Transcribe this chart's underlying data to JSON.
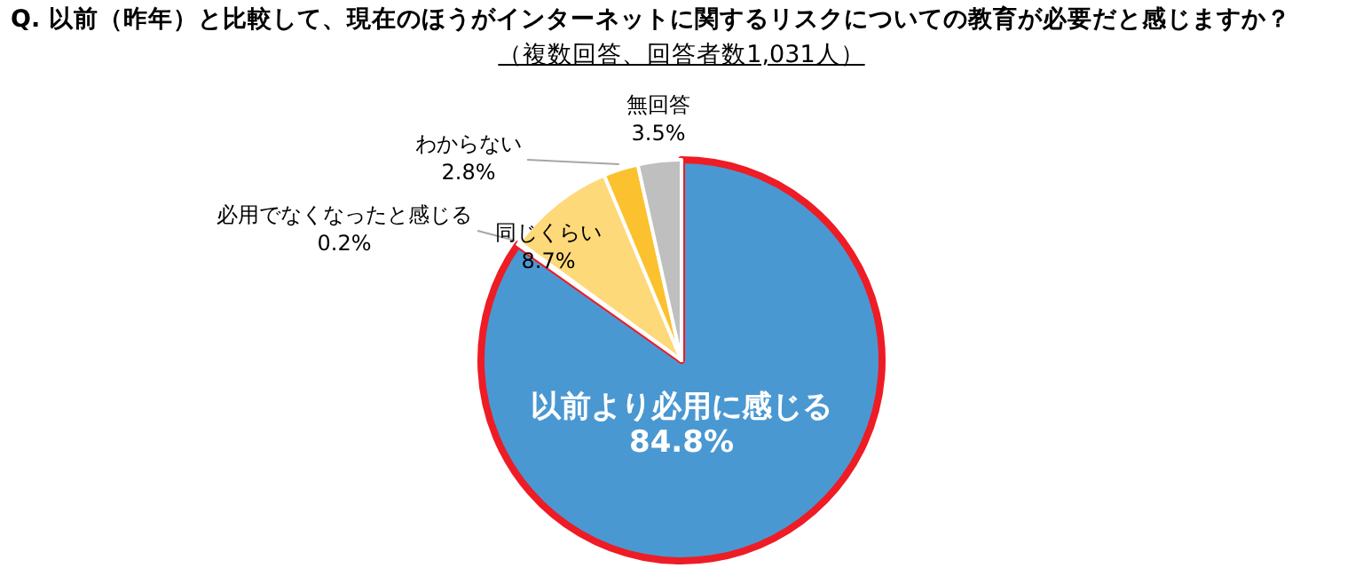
{
  "chart_data": {
    "type": "pie",
    "title": "Q. 以前（昨年）と比較して、現在のほうがインターネットに関するリスクについての教育が必要だと感じますか？",
    "subtitle": "（複数回答、回答者数1,031人）",
    "categories": [
      "以前より必用に感じる",
      "必用でなくなったと感じる",
      "同じくらい",
      "わからない",
      "無回答"
    ],
    "values": [
      84.8,
      0.2,
      8.7,
      2.8,
      3.5
    ],
    "value_labels": [
      "84.8%",
      "0.2%",
      "8.7%",
      "2.8%",
      "3.5%"
    ],
    "colors": [
      "#4a98d2",
      "#f4b183",
      "#fed97a",
      "#fbc12e",
      "#bfbfbf"
    ],
    "legend": false
  }
}
